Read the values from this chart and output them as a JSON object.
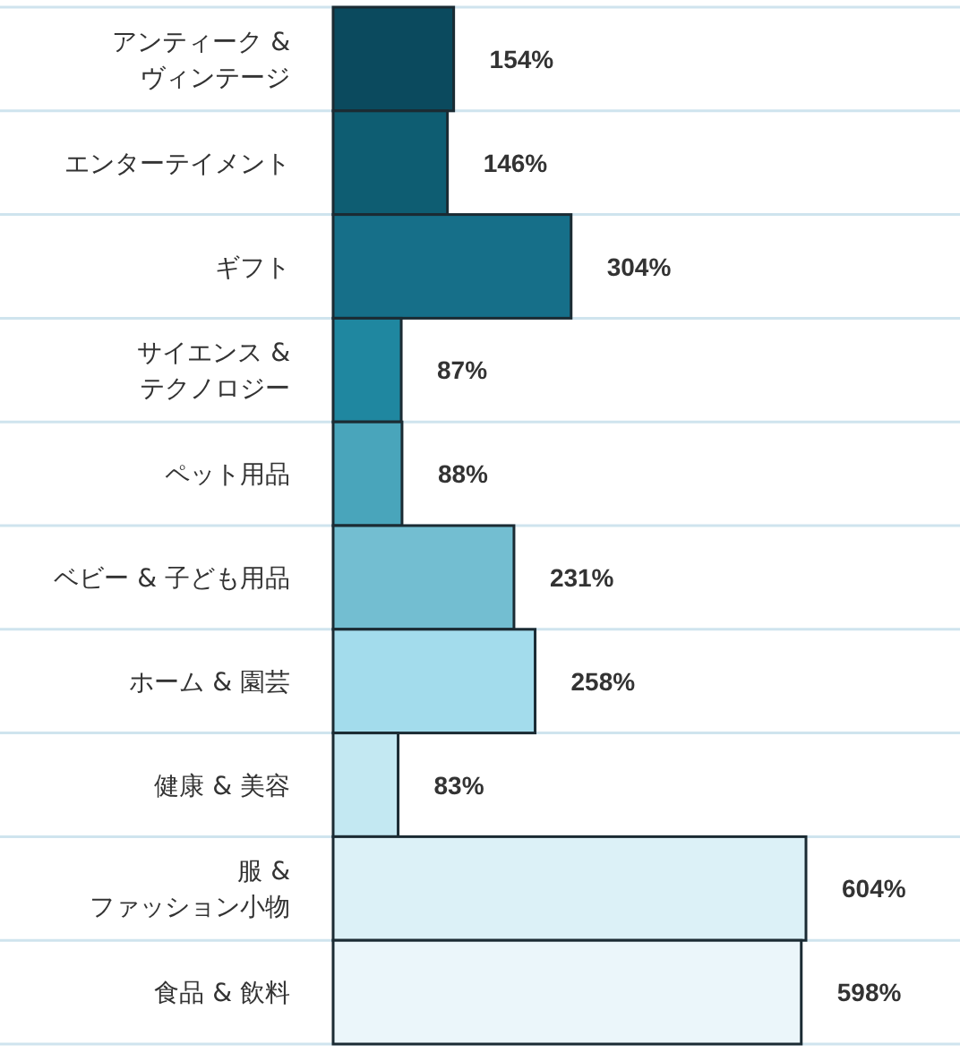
{
  "chart_data": {
    "type": "bar",
    "orientation": "horizontal",
    "categories": [
      "アンティーク &\nヴィンテージ",
      "エンターテイメント",
      "ギフト",
      "サイエンス &\nテクノロジー",
      "ペット用品",
      "ベビー & 子ども用品",
      "ホーム & 園芸",
      "健康 & 美容",
      "服 &\nファッション小物",
      "食品 & 飲料"
    ],
    "values": [
      154,
      146,
      304,
      87,
      88,
      231,
      258,
      83,
      604,
      598
    ],
    "colors": [
      "#0b4a5e",
      "#0e5d72",
      "#166f89",
      "#1f87a0",
      "#49a5bb",
      "#73bed1",
      "#a3dcec",
      "#c3e8f2",
      "#dcf1f7",
      "#ebf6fa"
    ],
    "value_labels": [
      "154%",
      "146%",
      "304%",
      "87%",
      "88%",
      "231%",
      "258%",
      "83%",
      "604%",
      "598%"
    ],
    "grid": "y"
  }
}
